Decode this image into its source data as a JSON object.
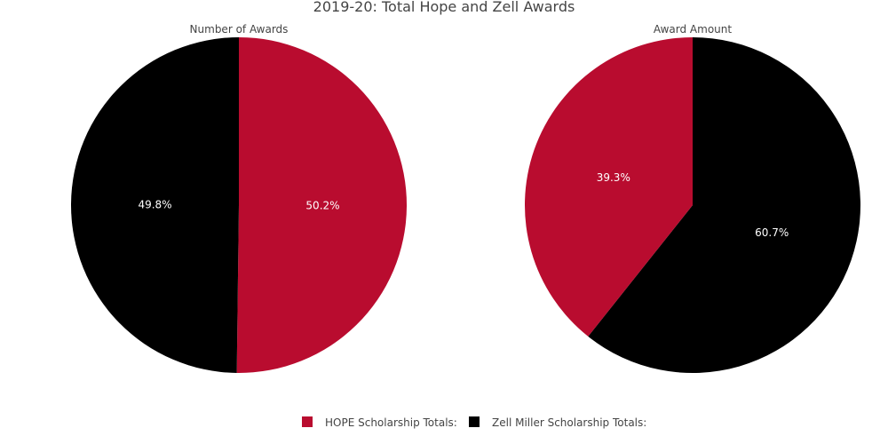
{
  "colors": {
    "hope": "#b90c2f",
    "zell": "#000000"
  },
  "chart_data": {
    "type": "pie",
    "title": "2019-20: Total Hope and Zell Awards",
    "legend": {
      "placement": "bottom",
      "entries": [
        {
          "name": "HOPE Scholarship Totals:",
          "color": "#b90c2f"
        },
        {
          "name": "Zell Miller Scholarship Totals:",
          "color": "#000000"
        }
      ]
    },
    "pies": [
      {
        "title": "Number of Awards",
        "slices": [
          {
            "label": "HOPE Scholarship Totals:",
            "value": 50.2,
            "text": "50.2%",
            "color": "#b90c2f"
          },
          {
            "label": "Zell Miller Scholarship Totals:",
            "value": 49.8,
            "text": "49.8%",
            "color": "#000000"
          }
        ]
      },
      {
        "title": "Award Amount",
        "slices": [
          {
            "label": "Zell Miller Scholarship Totals:",
            "value": 60.7,
            "text": "60.7%",
            "color": "#000000"
          },
          {
            "label": "HOPE Scholarship Totals:",
            "value": 39.3,
            "text": "39.3%",
            "color": "#b90c2f"
          }
        ]
      }
    ]
  }
}
